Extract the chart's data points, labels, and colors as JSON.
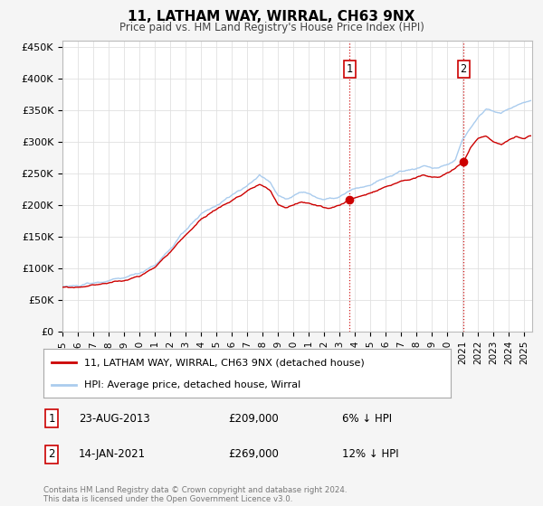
{
  "title": "11, LATHAM WAY, WIRRAL, CH63 9NX",
  "subtitle": "Price paid vs. HM Land Registry's House Price Index (HPI)",
  "ylim": [
    0,
    460000
  ],
  "xlim_start": 1995.0,
  "xlim_end": 2025.5,
  "hpi_color": "#aaccee",
  "price_color": "#cc0000",
  "marker1_date": 2013.65,
  "marker1_price": 209000,
  "marker1_label": "23-AUG-2013",
  "marker1_text": "£209,000",
  "marker1_pct": "6% ↓ HPI",
  "marker2_date": 2021.04,
  "marker2_price": 269000,
  "marker2_label": "14-JAN-2021",
  "marker2_text": "£269,000",
  "marker2_pct": "12% ↓ HPI",
  "vline1_x": 2013.65,
  "vline2_x": 2021.04,
  "legend_line1": "11, LATHAM WAY, WIRRAL, CH63 9NX (detached house)",
  "legend_line2": "HPI: Average price, detached house, Wirral",
  "footer": "Contains HM Land Registry data © Crown copyright and database right 2024.\nThis data is licensed under the Open Government Licence v3.0.",
  "background_color": "#f5f5f5",
  "plot_background": "#ffffff",
  "hpi_keypoints": [
    [
      1995.0,
      71000
    ],
    [
      1996.0,
      72000
    ],
    [
      1997.0,
      76000
    ],
    [
      1998.0,
      80000
    ],
    [
      1999.0,
      85000
    ],
    [
      2000.0,
      92000
    ],
    [
      2001.0,
      105000
    ],
    [
      2002.0,
      130000
    ],
    [
      2003.0,
      160000
    ],
    [
      2004.0,
      185000
    ],
    [
      2005.0,
      200000
    ],
    [
      2006.0,
      215000
    ],
    [
      2007.0,
      230000
    ],
    [
      2007.8,
      248000
    ],
    [
      2008.5,
      235000
    ],
    [
      2009.0,
      215000
    ],
    [
      2009.5,
      210000
    ],
    [
      2010.0,
      215000
    ],
    [
      2010.5,
      220000
    ],
    [
      2011.0,
      218000
    ],
    [
      2011.5,
      212000
    ],
    [
      2012.0,
      208000
    ],
    [
      2012.5,
      210000
    ],
    [
      2013.0,
      212000
    ],
    [
      2013.65,
      222000
    ],
    [
      2014.0,
      225000
    ],
    [
      2014.5,
      228000
    ],
    [
      2015.0,
      232000
    ],
    [
      2015.5,
      237000
    ],
    [
      2016.0,
      242000
    ],
    [
      2016.5,
      248000
    ],
    [
      2017.0,
      253000
    ],
    [
      2017.5,
      255000
    ],
    [
      2018.0,
      258000
    ],
    [
      2018.5,
      262000
    ],
    [
      2019.0,
      258000
    ],
    [
      2019.5,
      260000
    ],
    [
      2020.0,
      265000
    ],
    [
      2020.5,
      270000
    ],
    [
      2021.0,
      305000
    ],
    [
      2021.04,
      305000
    ],
    [
      2021.5,
      320000
    ],
    [
      2022.0,
      340000
    ],
    [
      2022.5,
      352000
    ],
    [
      2023.0,
      348000
    ],
    [
      2023.5,
      345000
    ],
    [
      2024.0,
      352000
    ],
    [
      2024.5,
      358000
    ],
    [
      2025.0,
      362000
    ],
    [
      2025.4,
      365000
    ]
  ],
  "price_keypoints": [
    [
      1995.0,
      69000
    ],
    [
      1996.0,
      70000
    ],
    [
      1997.0,
      73000
    ],
    [
      1998.0,
      77000
    ],
    [
      1999.0,
      80000
    ],
    [
      2000.0,
      88000
    ],
    [
      2001.0,
      100000
    ],
    [
      2002.0,
      125000
    ],
    [
      2003.0,
      152000
    ],
    [
      2004.0,
      178000
    ],
    [
      2005.0,
      193000
    ],
    [
      2006.0,
      208000
    ],
    [
      2007.0,
      222000
    ],
    [
      2007.8,
      233000
    ],
    [
      2008.5,
      222000
    ],
    [
      2009.0,
      200000
    ],
    [
      2009.5,
      196000
    ],
    [
      2010.0,
      200000
    ],
    [
      2010.5,
      205000
    ],
    [
      2011.0,
      202000
    ],
    [
      2011.5,
      198000
    ],
    [
      2012.0,
      194000
    ],
    [
      2012.5,
      196000
    ],
    [
      2013.0,
      200000
    ],
    [
      2013.65,
      209000
    ],
    [
      2014.0,
      212000
    ],
    [
      2014.5,
      215000
    ],
    [
      2015.0,
      218000
    ],
    [
      2015.5,
      223000
    ],
    [
      2016.0,
      228000
    ],
    [
      2016.5,
      233000
    ],
    [
      2017.0,
      238000
    ],
    [
      2017.5,
      240000
    ],
    [
      2018.0,
      243000
    ],
    [
      2018.5,
      247000
    ],
    [
      2019.0,
      243000
    ],
    [
      2019.5,
      245000
    ],
    [
      2020.0,
      250000
    ],
    [
      2020.5,
      258000
    ],
    [
      2021.0,
      269000
    ],
    [
      2021.04,
      269000
    ],
    [
      2021.5,
      290000
    ],
    [
      2022.0,
      305000
    ],
    [
      2022.5,
      310000
    ],
    [
      2023.0,
      300000
    ],
    [
      2023.5,
      295000
    ],
    [
      2024.0,
      302000
    ],
    [
      2024.5,
      308000
    ],
    [
      2025.0,
      305000
    ],
    [
      2025.4,
      308000
    ]
  ]
}
